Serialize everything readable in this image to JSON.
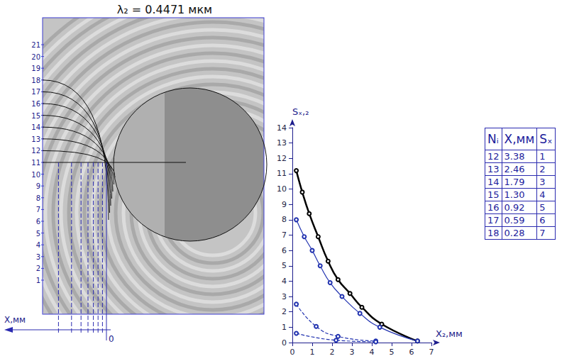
{
  "interferogram": {
    "title": "λ₂ = 0.4471 мкм",
    "row_labels": [
      1,
      2,
      3,
      4,
      5,
      6,
      7,
      8,
      9,
      10,
      11,
      12,
      13,
      14,
      15,
      16,
      17,
      18,
      19,
      20,
      21
    ],
    "x_label": "X,мм",
    "origin_label": "0"
  },
  "chart_data": {
    "type": "line",
    "x_label": "X₂,мм",
    "y_label": "Sₓ,₂",
    "xlim": [
      0,
      7
    ],
    "ylim": [
      0,
      14
    ],
    "xticks": [
      0,
      1,
      2,
      3,
      4,
      5,
      6,
      7
    ],
    "yticks": [
      0,
      1,
      2,
      3,
      4,
      5,
      6,
      7,
      8,
      9,
      10,
      11,
      12,
      13,
      14
    ],
    "grid": false,
    "series": [
      {
        "color": "#000000",
        "line_style": "solid",
        "marker": "circle",
        "x": [
          0.2,
          0.5,
          0.85,
          1.3,
          1.8,
          2.3,
          2.9,
          3.5,
          4.5,
          6.3
        ],
        "values": [
          11.2,
          9.8,
          8.4,
          6.9,
          5.3,
          4.1,
          3.2,
          2.3,
          1.2,
          0.1
        ]
      },
      {
        "color": "#2233b0",
        "line_style": "solid",
        "marker": "circle",
        "x": [
          0.2,
          0.6,
          1.0,
          1.4,
          1.9,
          2.5,
          3.4,
          4.4,
          6.3
        ],
        "values": [
          8.0,
          6.9,
          6.0,
          5.0,
          3.9,
          3.0,
          1.9,
          1.0,
          0.1
        ]
      },
      {
        "color": "#2233b0",
        "line_style": "dashed",
        "marker": "circle",
        "x": [
          0.2,
          1.2,
          2.3,
          4.2
        ],
        "values": [
          2.5,
          1.05,
          0.4,
          0.1
        ]
      },
      {
        "color": "#2233b0",
        "line_style": "dashed",
        "marker": "circle",
        "x": [
          0.2,
          2.2,
          4.2
        ],
        "values": [
          0.6,
          0.15,
          0.05
        ]
      }
    ]
  },
  "table": {
    "header": [
      "Nᵢ",
      "X,мм",
      "Sₓ"
    ],
    "rows": [
      [
        "12",
        "3.38",
        "1"
      ],
      [
        "13",
        "2.46",
        "2"
      ],
      [
        "14",
        "1.79",
        "3"
      ],
      [
        "15",
        "1.30",
        "4"
      ],
      [
        "16",
        "0.92",
        "5"
      ],
      [
        "17",
        "0.59",
        "6"
      ],
      [
        "18",
        "0.28",
        "7"
      ]
    ]
  }
}
